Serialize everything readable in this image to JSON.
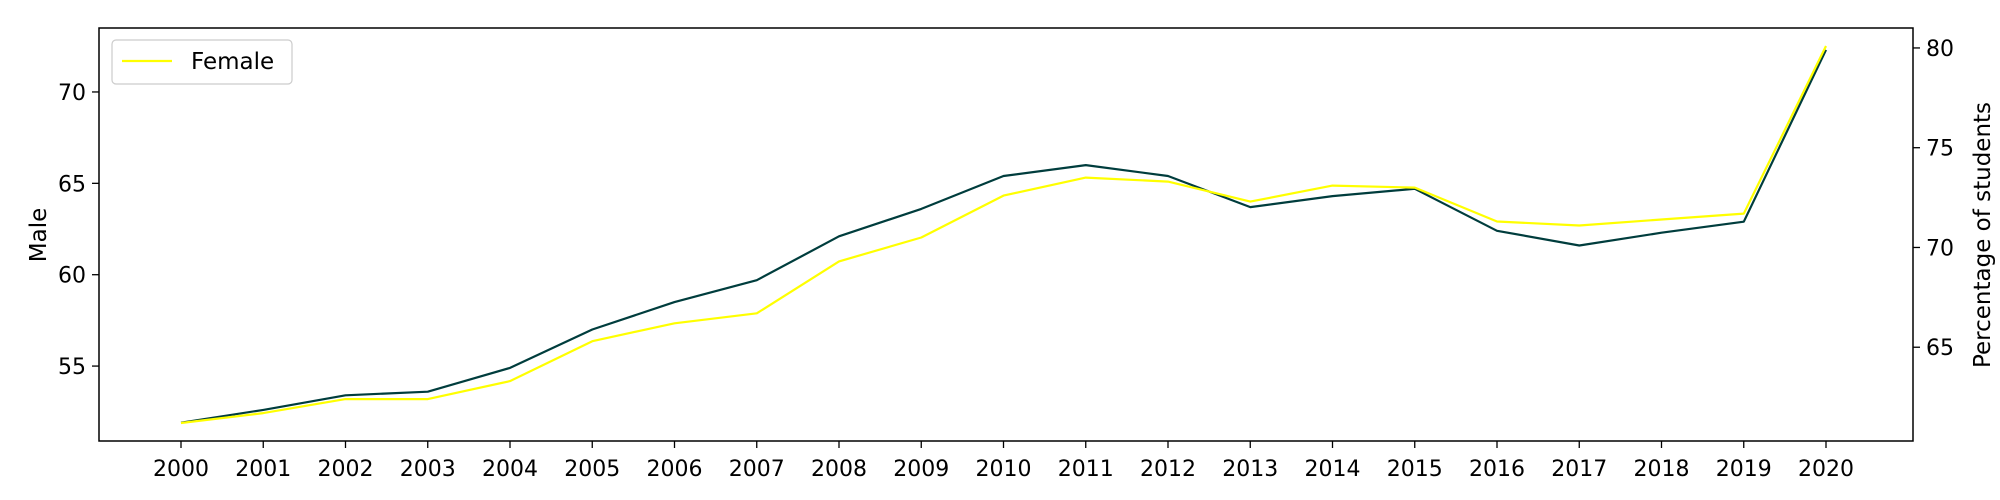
{
  "chart_data": {
    "type": "line",
    "categories": [
      "2000",
      "2001",
      "2002",
      "2003",
      "2004",
      "2005",
      "2006",
      "2007",
      "2008",
      "2009",
      "2010",
      "2011",
      "2012",
      "2013",
      "2014",
      "2015",
      "2016",
      "2017",
      "2018",
      "2019",
      "2020"
    ],
    "series": [
      {
        "name": "Male",
        "axis": "left",
        "color": "#003d3d",
        "values": [
          51.9,
          52.6,
          53.4,
          53.6,
          54.9,
          57.0,
          58.5,
          59.7,
          62.1,
          63.6,
          65.4,
          66.0,
          65.4,
          63.7,
          64.3,
          64.7,
          62.4,
          61.6,
          62.3,
          62.9,
          72.3
        ]
      },
      {
        "name": "Female",
        "axis": "right",
        "color": "#ffff00",
        "values": [
          61.2,
          61.7,
          62.4,
          62.4,
          63.3,
          65.3,
          66.2,
          66.7,
          69.3,
          70.5,
          72.6,
          73.5,
          73.3,
          72.3,
          73.1,
          73.0,
          71.3,
          71.1,
          71.4,
          71.7,
          80.1
        ]
      }
    ],
    "ylabel": "Male",
    "y2label": "Percentage of students",
    "ylim": [
      50.9,
      73.5
    ],
    "y2lim": [
      60.3,
      81.0
    ],
    "yticks": [
      55,
      60,
      65,
      70
    ],
    "y2ticks": [
      65,
      70,
      75,
      80
    ],
    "legend": {
      "placement": "upper-left",
      "entries": [
        "Female"
      ]
    },
    "grid": false
  }
}
